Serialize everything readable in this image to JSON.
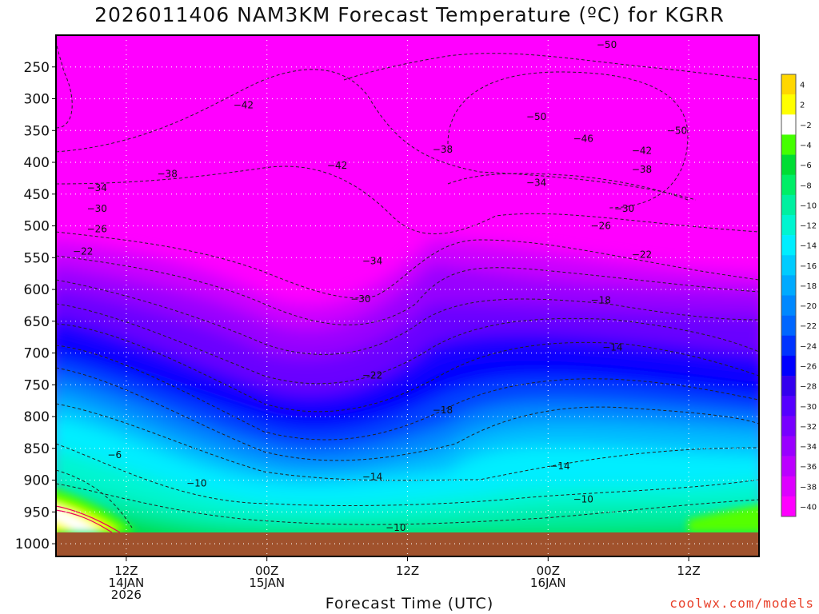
{
  "title": "2026011406 NAM3KM Forecast Temperature (ºC) for KGRR",
  "xlabel": "Forecast Time (UTC)",
  "credit": "coolwx.com/models",
  "chart_data": {
    "type": "heatmap",
    "title": "2026011406 NAM3KM Forecast Temperature (ºC) for KGRR",
    "xlabel": "Forecast Time (UTC)",
    "ylabel": "",
    "y_ticks": [
      250,
      300,
      350,
      400,
      450,
      500,
      550,
      600,
      650,
      700,
      750,
      800,
      850,
      900,
      950,
      1000
    ],
    "y_range_hpa": [
      200,
      1020
    ],
    "x_range_hours": [
      0,
      60
    ],
    "x_ticks": [
      {
        "hour": 6,
        "lines": [
          "12Z",
          "14JAN",
          "2026"
        ]
      },
      {
        "hour": 18,
        "lines": [
          "00Z",
          "15JAN"
        ]
      },
      {
        "hour": 30,
        "lines": [
          "12Z"
        ]
      },
      {
        "hour": 42,
        "lines": [
          "00Z",
          "16JAN"
        ]
      },
      {
        "hour": 54,
        "lines": [
          "12Z"
        ]
      }
    ],
    "grid": "dotted",
    "colorbar_labels": [
      4,
      2,
      -2,
      -4,
      -6,
      -8,
      -10,
      -12,
      -14,
      -16,
      -18,
      -20,
      -22,
      -24,
      -26,
      -28,
      -30,
      -32,
      -34,
      -36,
      -38,
      -40
    ],
    "colorbar_colors": [
      "#ffd700",
      "#ffff00",
      "#ffffff",
      "#44ff00",
      "#00dd33",
      "#00ee66",
      "#00f0a0",
      "#00f5d0",
      "#00eeff",
      "#00ccff",
      "#00aaff",
      "#0088ff",
      "#0066ff",
      "#0033ff",
      "#0000ff",
      "#3300ee",
      "#5500ff",
      "#7700ff",
      "#9900ff",
      "#bb00ff",
      "#dd00ff",
      "#ff00ff"
    ],
    "contour_labels": [
      {
        "value": -50,
        "hour": 47,
        "hpa": 215
      },
      {
        "value": -50,
        "hour": 41,
        "hpa": 328
      },
      {
        "value": -50,
        "hour": 53,
        "hpa": 350
      },
      {
        "value": -46,
        "hour": 45,
        "hpa": 363
      },
      {
        "value": -42,
        "hour": 16,
        "hpa": 310
      },
      {
        "value": -42,
        "hour": 50,
        "hpa": 382
      },
      {
        "value": -38,
        "hour": 9.5,
        "hpa": 418
      },
      {
        "value": -38,
        "hour": 33,
        "hpa": 380
      },
      {
        "value": -38,
        "hour": 50,
        "hpa": 411
      },
      {
        "value": -34,
        "hour": 3.5,
        "hpa": 440
      },
      {
        "value": -34,
        "hour": 27,
        "hpa": 555
      },
      {
        "value": -34,
        "hour": 41,
        "hpa": 432
      },
      {
        "value": -30,
        "hour": 3.5,
        "hpa": 473
      },
      {
        "value": -30,
        "hour": 26,
        "hpa": 615
      },
      {
        "value": -30,
        "hour": 48.5,
        "hpa": 473
      },
      {
        "value": -26,
        "hour": 3.5,
        "hpa": 505
      },
      {
        "value": -26,
        "hour": 46.5,
        "hpa": 500
      },
      {
        "value": -22,
        "hour": 2.3,
        "hpa": 540
      },
      {
        "value": -22,
        "hour": 27,
        "hpa": 735
      },
      {
        "value": -22,
        "hour": 50,
        "hpa": 545
      },
      {
        "value": -18,
        "hour": 33,
        "hpa": 790
      },
      {
        "value": -18,
        "hour": 46.5,
        "hpa": 617
      },
      {
        "value": -14,
        "hour": 27,
        "hpa": 895
      },
      {
        "value": -14,
        "hour": 43,
        "hpa": 878
      },
      {
        "value": -14,
        "hour": 47.5,
        "hpa": 691
      },
      {
        "value": -10,
        "hour": 12,
        "hpa": 905
      },
      {
        "value": -10,
        "hour": 29,
        "hpa": 975
      },
      {
        "value": -10,
        "hour": 45,
        "hpa": 930
      },
      {
        "value": -6,
        "hour": 5,
        "hpa": 860
      },
      {
        "value": -42,
        "hour": 24,
        "hpa": 405
      }
    ]
  }
}
